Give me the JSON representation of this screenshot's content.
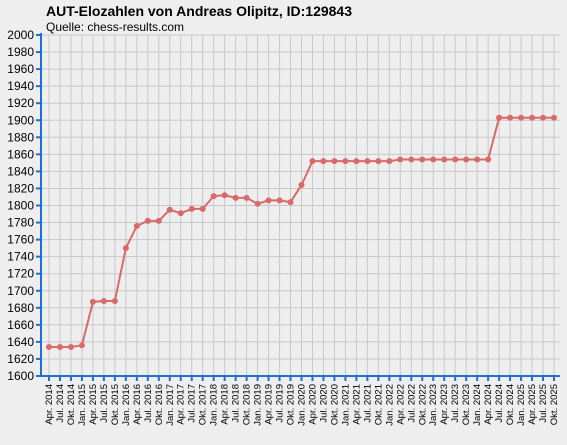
{
  "chart_data": {
    "type": "line",
    "title": "AUT-Elozahlen von Andreas Olipitz, ID:129843",
    "subtitle": "Quelle: chess-results.com",
    "xlabel": "",
    "ylabel": "",
    "ylim": [
      1600,
      2000
    ],
    "y_ticks": [
      1600,
      1620,
      1640,
      1660,
      1680,
      1700,
      1720,
      1740,
      1760,
      1780,
      1800,
      1820,
      1840,
      1860,
      1880,
      1900,
      1920,
      1940,
      1960,
      1980,
      2000
    ],
    "grid": true,
    "line_color": "#d86a6a",
    "background_color": "#eeeeee",
    "grid_color": "#c8c8c8",
    "axis_color": "#1f6fd6",
    "x": [
      "Apr. 2014",
      "Jul. 2014",
      "Okt. 2014",
      "Jan. 2015",
      "Apr. 2015",
      "Jul. 2015",
      "Okt. 2015",
      "Jan. 2016",
      "Apr. 2016",
      "Jul. 2016",
      "Okt. 2016",
      "Jan. 2017",
      "Apr. 2017",
      "Jul. 2017",
      "Okt. 2017",
      "Jan. 2018",
      "Apr. 2018",
      "Jul. 2018",
      "Okt. 2018",
      "Jan. 2019",
      "Apr. 2019",
      "Jul. 2019",
      "Okt. 2019",
      "Jan. 2020",
      "Apr. 2020",
      "Jul. 2020",
      "Okt. 2020",
      "Jan. 2021",
      "Apr. 2021",
      "Jul. 2021",
      "Okt. 2021",
      "Jan. 2022",
      "Apr. 2022",
      "Jul. 2022",
      "Okt. 2022",
      "Jan. 2023",
      "Apr. 2023",
      "Jul. 2023",
      "Okt. 2023",
      "Jan. 2024",
      "Apr. 2024",
      "Jul. 2024",
      "Okt. 2024",
      "Jan. 2025",
      "Apr. 2025",
      "Jul. 2025",
      "Okt. 2025"
    ],
    "series": [
      {
        "values": [
          1634,
          1634,
          1634,
          1636,
          1687,
          1688,
          1688,
          1750,
          1776,
          1782,
          1782,
          1795,
          1791,
          1796,
          1796,
          1811,
          1812,
          1809,
          1809,
          1802,
          1806,
          1806,
          1804,
          1824,
          1852,
          1852,
          1852,
          1852,
          1852,
          1852,
          1852,
          1852,
          1854,
          1854,
          1854,
          1854,
          1854,
          1854,
          1854,
          1854,
          1854,
          1903,
          1903,
          1903,
          1903,
          1903,
          1903
        ]
      }
    ]
  }
}
